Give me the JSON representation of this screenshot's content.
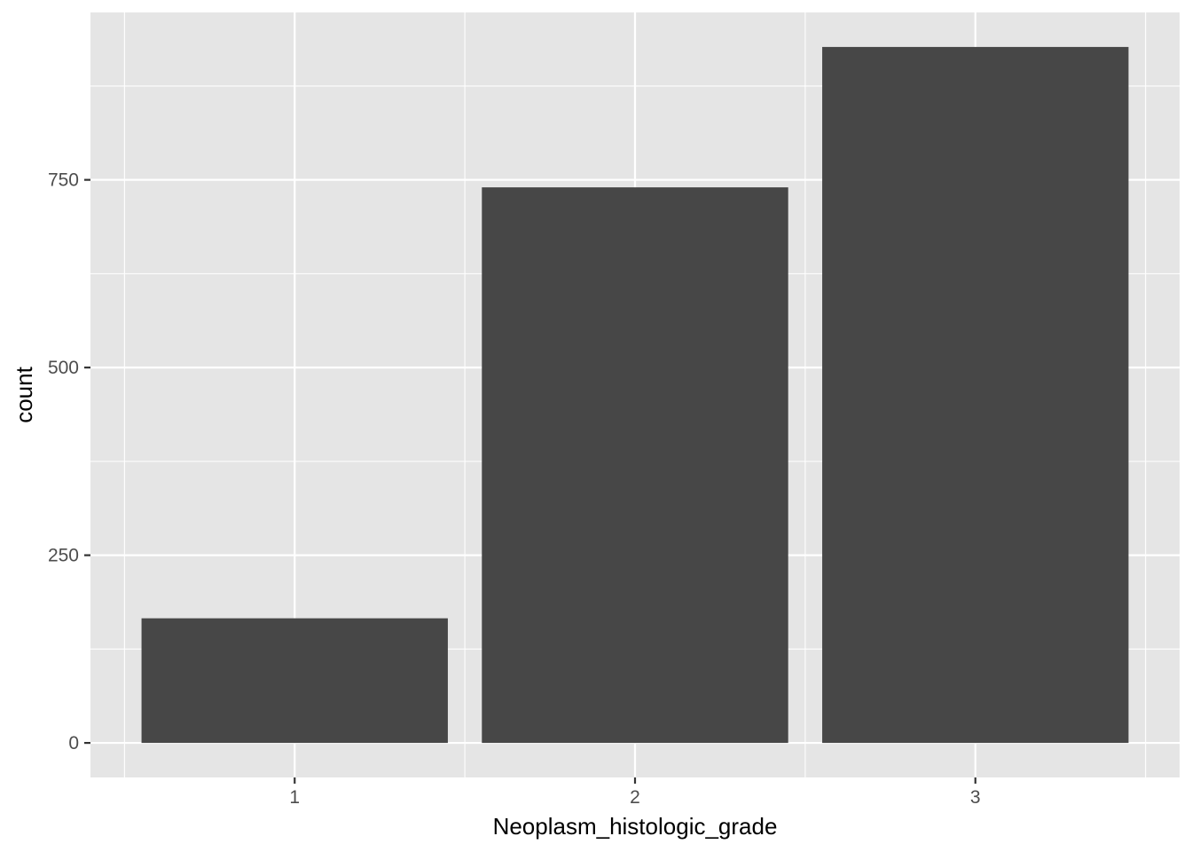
{
  "chart_data": {
    "type": "bar",
    "title": "",
    "xlabel": "Neoplasm_histologic_grade",
    "ylabel": "count",
    "categories": [
      "1",
      "2",
      "3"
    ],
    "values": [
      166,
      740,
      927
    ],
    "ylim": [
      -46,
      973
    ],
    "yticks": [
      0,
      250,
      500,
      750
    ],
    "ytick_labels": [
      "0",
      "250",
      "500",
      "750"
    ],
    "grid": true,
    "legend": "none",
    "colors": {
      "panel_background": "#e5e5e5",
      "grid": "#ffffff",
      "bar_fill": "#474747",
      "tick_text": "#4d4d4d",
      "tick_mark": "#333333",
      "title_text": "#000000"
    }
  }
}
